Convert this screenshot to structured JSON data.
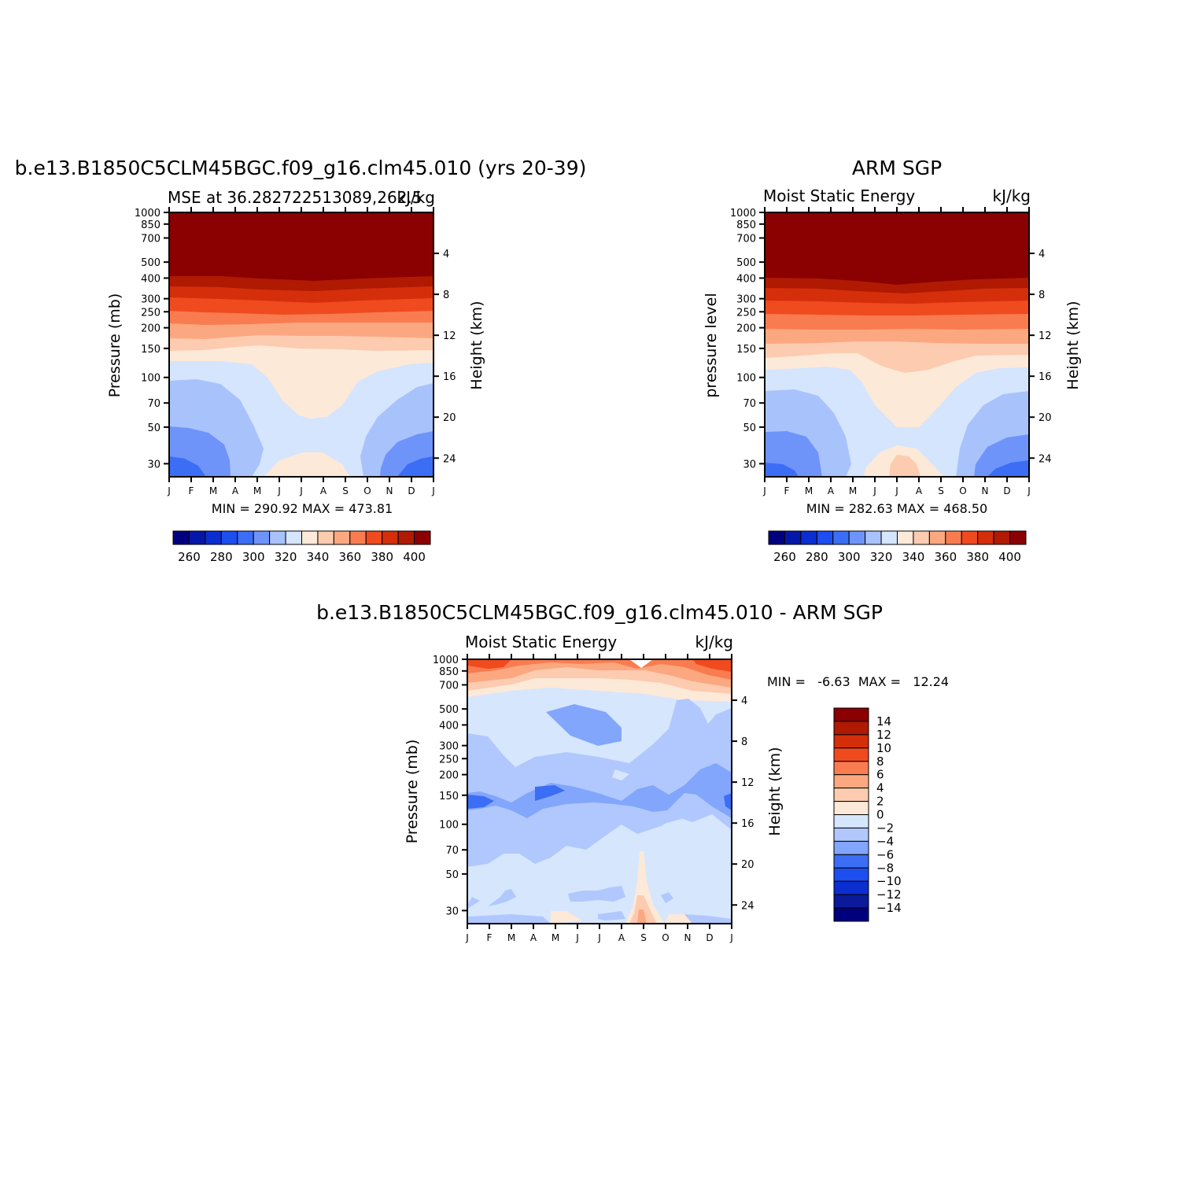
{
  "colors": {
    "abs_scale": [
      "#00007f",
      "#0517a8",
      "#0a2ed0",
      "#1d4ef0",
      "#3b6ef5",
      "#6e94fa",
      "#a8c2fc",
      "#d4e5fd",
      "#fde9d8",
      "#fccbb0",
      "#fba880",
      "#f97c50",
      "#f04a1f",
      "#d52e0b",
      "#b01a03",
      "#8b0000"
    ],
    "diff_scale": [
      "#00007f",
      "#0a1a9a",
      "#0a2ed0",
      "#1d4ef0",
      "#3b6ef5",
      "#82a6fb",
      "#b0c8fd",
      "#d6e6fd",
      "#fde9d8",
      "#fccbb0",
      "#fba880",
      "#f97c50",
      "#f04a1f",
      "#d52e0b",
      "#b01a03",
      "#8b0000"
    ]
  },
  "months": [
    "J",
    "F",
    "M",
    "A",
    "M",
    "J",
    "J",
    "A",
    "S",
    "O",
    "N",
    "D",
    "J"
  ],
  "pressure_ticks": [
    "30",
    "50",
    "70",
    "100",
    "150",
    "200",
    "250",
    "300",
    "400",
    "500",
    "700",
    "850",
    "1000"
  ],
  "pressure_values": [
    30,
    50,
    70,
    100,
    150,
    200,
    250,
    300,
    400,
    500,
    700,
    850,
    1000
  ],
  "height_ticks": [
    "24",
    "20",
    "16",
    "12",
    "8",
    "4"
  ],
  "height_values": [
    24,
    20,
    16,
    12,
    8,
    4
  ],
  "chart_data": [
    {
      "type": "heatmap",
      "title": "b.e13.B1850C5CLM45BGC.f09_g16.clm45.010 (yrs 20-39)",
      "left_string": "MSE at 36.282722513089,262.5",
      "right_string": "kJ/kg",
      "ylabel": "Pressure (mb)",
      "ylabel_right": "Height (km)",
      "ylim": [
        1000,
        25
      ],
      "min_max_text": "MIN =  290.92  MAX =  473.81",
      "colorbar_labels": [
        "260",
        "280",
        "300",
        "320",
        "340",
        "360",
        "380",
        "400"
      ],
      "colorbar_levels": [
        250,
        260,
        270,
        280,
        290,
        300,
        310,
        320,
        330,
        340,
        350,
        360,
        370,
        380,
        390,
        400
      ],
      "z_min": 290.92,
      "z_max": 473.81
    },
    {
      "type": "heatmap",
      "title": "ARM SGP",
      "left_string": "Moist Static Energy",
      "right_string": "kJ/kg",
      "ylabel": "pressure level",
      "ylabel_right": "Height (km)",
      "ylim": [
        1000,
        25
      ],
      "min_max_text": "MIN =  282.63  MAX =  468.50",
      "colorbar_labels": [
        "260",
        "280",
        "300",
        "320",
        "340",
        "360",
        "380",
        "400"
      ],
      "colorbar_levels": [
        250,
        260,
        270,
        280,
        290,
        300,
        310,
        320,
        330,
        340,
        350,
        360,
        370,
        380,
        390,
        400
      ],
      "z_min": 282.63,
      "z_max": 468.5
    },
    {
      "type": "heatmap",
      "title": "b.e13.B1850C5CLM45BGC.f09_g16.clm45.010 - ARM SGP",
      "left_string": "Moist Static Energy",
      "right_string": "kJ/kg",
      "ylabel": "Pressure (mb)",
      "ylabel_right": "Height (km)",
      "ylim": [
        1000,
        25
      ],
      "min_max_label": "MIN =   -6.63  MAX =   12.24",
      "colorbar_labels": [
        "14",
        "12",
        "10",
        "8",
        "6",
        "4",
        "2",
        "0",
        "-2",
        "-4",
        "-6",
        "-8",
        "-10",
        "-12",
        "-14"
      ],
      "colorbar_levels": [
        -14,
        -12,
        -10,
        -8,
        -6,
        -4,
        -2,
        0,
        2,
        4,
        6,
        8,
        10,
        12,
        14
      ],
      "z_min": -6.63,
      "z_max": 12.24
    }
  ]
}
